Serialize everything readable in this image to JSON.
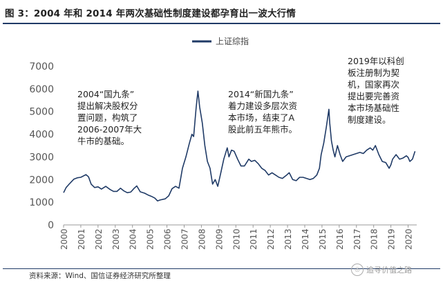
{
  "header": {
    "title": "图 3：2004 年和 2014 年两次基础性制度建设都孕育出一波大行情"
  },
  "footer": {
    "source": "资料来源：Wind、国信证券经济研究所整理",
    "watermark": "追寻价值之路"
  },
  "colors": {
    "line": "#1f3a66",
    "rule": "#1f3a66",
    "axis_text": "#555555"
  },
  "icons": {
    "watermark_icon": "wechat-icon"
  },
  "chart_data": {
    "type": "line",
    "legend": {
      "position": "top-center"
    },
    "xlim": [
      2000,
      2020.5
    ],
    "ylim": [
      0,
      7000
    ],
    "yticks": [
      0,
      1000,
      2000,
      3000,
      4000,
      5000,
      6000,
      7000
    ],
    "xticks": [
      "2000",
      "2001",
      "2002",
      "2003",
      "2004",
      "2005",
      "2006",
      "2007",
      "2008",
      "2009",
      "2010",
      "2011",
      "2012",
      "2013",
      "2014",
      "2015",
      "2016",
      "2017",
      "2018",
      "2019",
      "2020"
    ],
    "grid": false,
    "series": [
      {
        "name": "上证综指",
        "x": [
          2000.0,
          2000.15,
          2000.3,
          2000.45,
          2000.6,
          2000.8,
          2001.0,
          2001.3,
          2001.45,
          2001.6,
          2001.8,
          2002.0,
          2002.2,
          2002.45,
          2002.7,
          2002.9,
          2003.1,
          2003.3,
          2003.5,
          2003.7,
          2003.9,
          2004.1,
          2004.25,
          2004.45,
          2004.7,
          2004.9,
          2005.1,
          2005.3,
          2005.45,
          2005.6,
          2005.9,
          2006.1,
          2006.3,
          2006.5,
          2006.7,
          2006.9,
          2007.1,
          2007.3,
          2007.45,
          2007.55,
          2007.7,
          2007.8,
          2007.9,
          2008.05,
          2008.2,
          2008.35,
          2008.5,
          2008.65,
          2008.8,
          2008.95,
          2009.1,
          2009.3,
          2009.5,
          2009.6,
          2009.75,
          2009.9,
          2010.1,
          2010.3,
          2010.5,
          2010.75,
          2010.9,
          2011.1,
          2011.3,
          2011.5,
          2011.7,
          2011.9,
          2012.1,
          2012.3,
          2012.5,
          2012.7,
          2012.95,
          2013.1,
          2013.3,
          2013.5,
          2013.7,
          2013.9,
          2014.1,
          2014.3,
          2014.5,
          2014.7,
          2014.85,
          2014.95,
          2015.1,
          2015.25,
          2015.4,
          2015.45,
          2015.55,
          2015.65,
          2015.75,
          2015.9,
          2016.05,
          2016.2,
          2016.4,
          2016.6,
          2016.8,
          2017.0,
          2017.2,
          2017.4,
          2017.6,
          2017.8,
          2017.95,
          2018.1,
          2018.3,
          2018.5,
          2018.7,
          2018.9,
          2019.0,
          2019.1,
          2019.3,
          2019.5,
          2019.7,
          2019.9,
          2020.0,
          2020.1,
          2020.25,
          2020.4
        ],
        "values": [
          1420,
          1650,
          1780,
          1900,
          2020,
          2080,
          2100,
          2220,
          2120,
          1800,
          1650,
          1680,
          1580,
          1700,
          1560,
          1480,
          1480,
          1620,
          1500,
          1420,
          1450,
          1620,
          1720,
          1460,
          1400,
          1320,
          1260,
          1180,
          1060,
          1100,
          1150,
          1280,
          1600,
          1700,
          1620,
          2500,
          3000,
          3600,
          4000,
          3900,
          5200,
          5900,
          5200,
          4500,
          3500,
          2800,
          2500,
          1800,
          2000,
          1700,
          2200,
          2900,
          3400,
          3000,
          3300,
          3250,
          2900,
          2600,
          2600,
          2900,
          2800,
          2850,
          2700,
          2500,
          2400,
          2200,
          2300,
          2200,
          2100,
          2050,
          2200,
          2300,
          2000,
          1950,
          2100,
          2100,
          2050,
          2000,
          2050,
          2200,
          2500,
          3100,
          3600,
          4300,
          5100,
          4500,
          3700,
          3300,
          3000,
          3500,
          3100,
          2800,
          3000,
          3050,
          3100,
          3150,
          3200,
          3150,
          3300,
          3400,
          3300,
          3500,
          3100,
          2800,
          2750,
          2500,
          2650,
          2900,
          3100,
          2900,
          2950,
          3050,
          2980,
          2800,
          2900,
          3250
        ]
      }
    ],
    "annotations": [
      {
        "lines": [
          "2004“国九条”",
          "提出解决股权分",
          "置问题，构筑了",
          "2006-2007年大",
          "牛市的基础。"
        ]
      },
      {
        "lines": [
          "2014“新国九条”",
          "着力建设多层次资",
          "本市场，结束了A",
          "股此前五年熊市。"
        ]
      },
      {
        "lines": [
          "2019年以科创",
          "板注册制为契",
          "机，国家再次",
          "提出要完善资",
          "本市场基础性",
          "制度建设。"
        ]
      }
    ]
  }
}
